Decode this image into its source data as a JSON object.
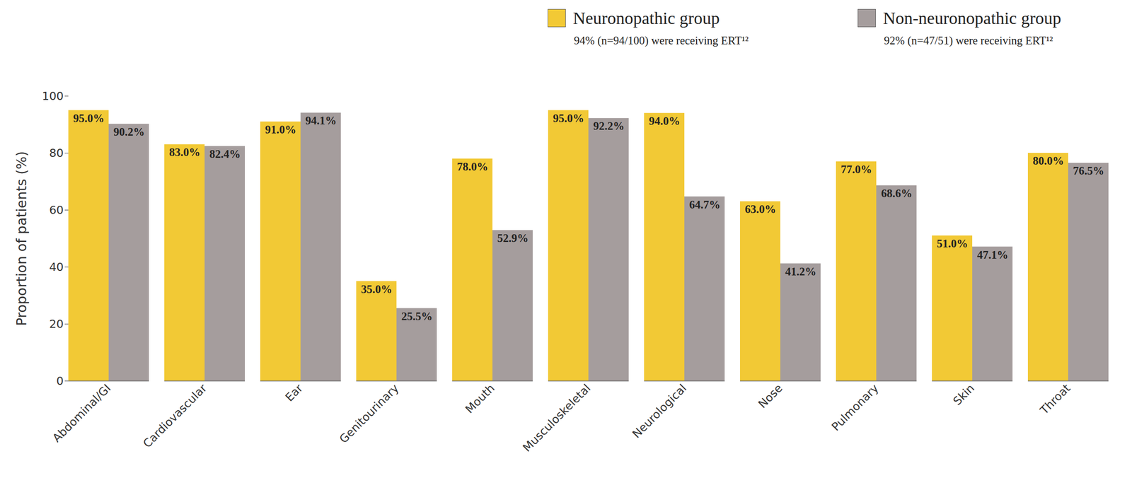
{
  "chart_data": {
    "type": "bar",
    "y_label": "Proportion of patients (%)",
    "categories": [
      "Abdominal/GI",
      "Cardiovascular",
      "Ear",
      "Genitourinary",
      "Mouth",
      "Musculoskeletal",
      "Neurological",
      "Nose",
      "Pulmonary",
      "Skin",
      "Throat"
    ],
    "series": [
      {
        "name": "Neuronopathic group",
        "color": "#f2c935",
        "values": [
          95.0,
          83.0,
          91.0,
          35.0,
          78.0,
          95.0,
          94.0,
          63.0,
          77.0,
          51.0,
          80.0
        ],
        "value_labels": [
          "95.0%",
          "83.0%",
          "91.0%",
          "35.0%",
          "78.0%",
          "95.0%",
          "94.0%",
          "63.0%",
          "77.0%",
          "51.0%",
          "80.0%"
        ]
      },
      {
        "name": "Non-neuronopathic group",
        "color": "#a59d9d",
        "values": [
          90.2,
          82.4,
          94.1,
          25.5,
          52.9,
          92.2,
          64.7,
          41.2,
          68.6,
          47.1,
          76.5
        ],
        "value_labels": [
          "90.2%",
          "82.4%",
          "94.1%",
          "25.5%",
          "52.9%",
          "92.2%",
          "64.7%",
          "41.2%",
          "68.6%",
          "47.1%",
          "76.5%"
        ]
      }
    ],
    "annotations": [
      "94% (n=94/100) were receiving ERT¹²",
      "92% (n=47/51) were receiving ERT¹²"
    ],
    "ylim": [
      0,
      100
    ],
    "yticks": [
      0,
      20,
      40,
      60,
      80,
      100
    ],
    "grid": false,
    "legend": "top-right",
    "data_labels": true
  }
}
